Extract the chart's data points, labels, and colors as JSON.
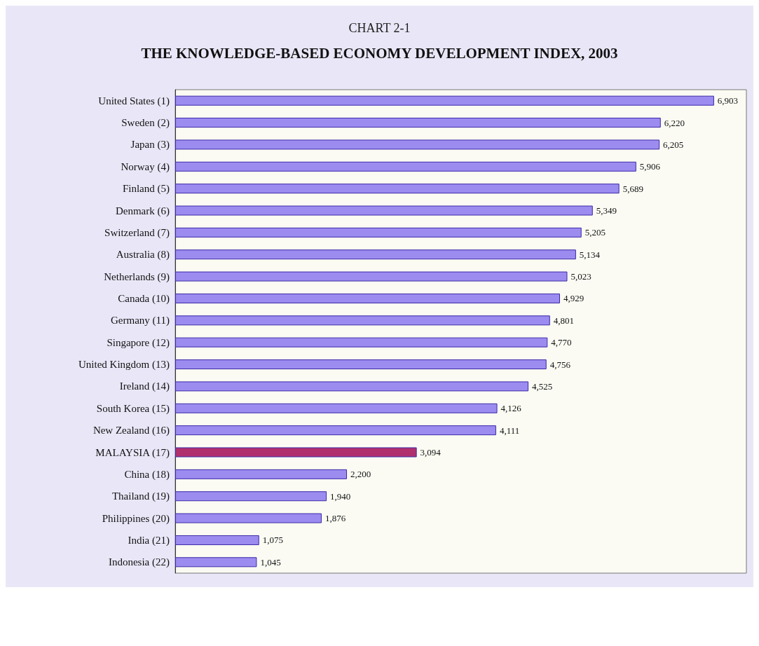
{
  "chart_data": {
    "type": "bar",
    "orientation": "horizontal",
    "title": "CHART 2-1",
    "subtitle": "THE KNOWLEDGE-BASED ECONOMY DEVELOPMENT INDEX, 2003",
    "categories": [
      "United States (1)",
      "Sweden (2)",
      "Japan (3)",
      "Norway (4)",
      "Finland (5)",
      "Denmark (6)",
      "Switzerland (7)",
      "Australia (8)",
      "Netherlands (9)",
      "Canada (10)",
      "Germany (11)",
      "Singapore (12)",
      "United Kingdom (13)",
      "Ireland (14)",
      "South Korea (15)",
      "New Zealand (16)",
      "MALAYSIA (17)",
      "China (18)",
      "Thailand (19)",
      "Philippines (20)",
      "India (21)",
      "Indonesia (22)"
    ],
    "values": [
      6903,
      6220,
      6205,
      5906,
      5689,
      5349,
      5205,
      5134,
      5023,
      4929,
      4801,
      4770,
      4756,
      4525,
      4126,
      4111,
      3094,
      2200,
      1940,
      1876,
      1075,
      1045
    ],
    "value_labels": [
      "6,903",
      "6,220",
      "6,205",
      "5,906",
      "5,689",
      "5,349",
      "5,205",
      "5,134",
      "5,023",
      "4,929",
      "4,801",
      "4,770",
      "4,756",
      "4,525",
      "4,126",
      "4,111",
      "3,094",
      "2,200",
      "1,940",
      "1,876",
      "1,075",
      "1,045"
    ],
    "colors": [
      "#9c8cf0",
      "#9c8cf0",
      "#9c8cf0",
      "#9c8cf0",
      "#9c8cf0",
      "#9c8cf0",
      "#9c8cf0",
      "#9c8cf0",
      "#9c8cf0",
      "#9c8cf0",
      "#9c8cf0",
      "#9c8cf0",
      "#9c8cf0",
      "#9c8cf0",
      "#9c8cf0",
      "#9c8cf0",
      "#b0306e",
      "#9c8cf0",
      "#9c8cf0",
      "#9c8cf0",
      "#9c8cf0",
      "#9c8cf0"
    ],
    "tick_labels": "y"
  }
}
